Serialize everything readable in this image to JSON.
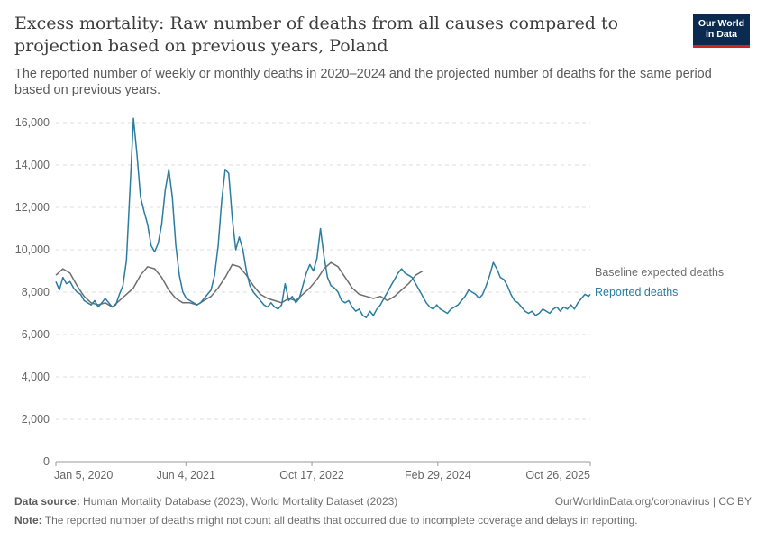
{
  "header": {
    "title": "Excess mortality: Raw number of deaths from all causes compared to projection based on previous years, Poland",
    "subtitle": "The reported number of weekly or monthly deaths in 2020–2024 and the projected number of deaths for the same period based on previous years."
  },
  "logo": {
    "line1": "Our World",
    "line2": "in Data",
    "bg_color": "#0b2a4f",
    "accent_color": "#ce261e"
  },
  "footer": {
    "source_label": "Data source:",
    "source_text": "Human Mortality Database (2023), World Mortality Dataset (2023)",
    "url": "OurWorldinData.org/coronavirus | CC BY",
    "note_label": "Note:",
    "note_text": "The reported number of deaths might not count all deaths that occurred due to incomplete coverage and delays in reporting."
  },
  "chart_data": {
    "type": "line",
    "x_type": "date",
    "xlim": [
      "2020-01-05",
      "2025-10-26"
    ],
    "ylim": [
      0,
      16000
    ],
    "yticks": [
      0,
      2000,
      4000,
      6000,
      8000,
      10000,
      12000,
      14000,
      16000
    ],
    "ytick_labels": [
      "0",
      "2,000",
      "4,000",
      "6,000",
      "8,000",
      "10,000",
      "12,000",
      "14,000",
      "16,000"
    ],
    "xticks": [
      "2020-01-05",
      "2021-06-04",
      "2022-10-17",
      "2024-02-29",
      "2025-10-26"
    ],
    "xtick_labels": [
      "Jan 5, 2020",
      "Jun 4, 2021",
      "Oct 17, 2022",
      "Feb 29, 2024",
      "Oct 26, 2025"
    ],
    "grid": "horizontal dashed",
    "legend": "right, inline labels",
    "series": [
      {
        "name": "Baseline expected deaths",
        "color": "#6e6e6e",
        "points": [
          [
            "2020-01-05",
            8800
          ],
          [
            "2020-02-02",
            9100
          ],
          [
            "2020-03-01",
            8900
          ],
          [
            "2020-03-29",
            8300
          ],
          [
            "2020-04-26",
            7800
          ],
          [
            "2020-05-24",
            7500
          ],
          [
            "2020-06-21",
            7400
          ],
          [
            "2020-07-19",
            7500
          ],
          [
            "2020-08-16",
            7300
          ],
          [
            "2020-09-13",
            7600
          ],
          [
            "2020-10-11",
            7900
          ],
          [
            "2020-11-08",
            8200
          ],
          [
            "2020-12-06",
            8800
          ],
          [
            "2021-01-03",
            9200
          ],
          [
            "2021-01-31",
            9100
          ],
          [
            "2021-02-28",
            8700
          ],
          [
            "2021-03-28",
            8100
          ],
          [
            "2021-04-25",
            7700
          ],
          [
            "2021-05-23",
            7500
          ],
          [
            "2021-06-20",
            7500
          ],
          [
            "2021-07-18",
            7400
          ],
          [
            "2021-08-15",
            7600
          ],
          [
            "2021-09-12",
            7800
          ],
          [
            "2021-10-10",
            8200
          ],
          [
            "2021-11-07",
            8700
          ],
          [
            "2021-12-05",
            9300
          ],
          [
            "2022-01-02",
            9200
          ],
          [
            "2022-01-30",
            8800
          ],
          [
            "2022-02-27",
            8300
          ],
          [
            "2022-03-27",
            7900
          ],
          [
            "2022-04-24",
            7700
          ],
          [
            "2022-05-22",
            7600
          ],
          [
            "2022-06-19",
            7500
          ],
          [
            "2022-07-17",
            7700
          ],
          [
            "2022-08-14",
            7600
          ],
          [
            "2022-09-11",
            7900
          ],
          [
            "2022-10-09",
            8200
          ],
          [
            "2022-11-06",
            8600
          ],
          [
            "2022-12-04",
            9100
          ],
          [
            "2023-01-01",
            9400
          ],
          [
            "2023-01-29",
            9200
          ],
          [
            "2023-02-26",
            8700
          ],
          [
            "2023-03-26",
            8200
          ],
          [
            "2023-04-23",
            7900
          ],
          [
            "2023-05-21",
            7800
          ],
          [
            "2023-06-18",
            7700
          ],
          [
            "2023-07-16",
            7800
          ],
          [
            "2023-08-13",
            7600
          ],
          [
            "2023-09-10",
            7800
          ],
          [
            "2023-10-08",
            8100
          ],
          [
            "2023-11-05",
            8400
          ],
          [
            "2023-12-03",
            8800
          ],
          [
            "2023-12-31",
            9000
          ]
        ]
      },
      {
        "name": "Reported deaths",
        "color": "#2a7ca0",
        "points": [
          [
            "2020-01-05",
            8500
          ],
          [
            "2020-01-19",
            8100
          ],
          [
            "2020-02-02",
            8700
          ],
          [
            "2020-02-16",
            8400
          ],
          [
            "2020-03-01",
            8500
          ],
          [
            "2020-03-15",
            8200
          ],
          [
            "2020-03-29",
            8000
          ],
          [
            "2020-04-12",
            7900
          ],
          [
            "2020-04-26",
            7600
          ],
          [
            "2020-05-10",
            7500
          ],
          [
            "2020-05-24",
            7400
          ],
          [
            "2020-06-07",
            7600
          ],
          [
            "2020-06-21",
            7300
          ],
          [
            "2020-07-05",
            7500
          ],
          [
            "2020-07-19",
            7700
          ],
          [
            "2020-08-02",
            7500
          ],
          [
            "2020-08-16",
            7300
          ],
          [
            "2020-08-30",
            7400
          ],
          [
            "2020-09-13",
            7900
          ],
          [
            "2020-09-27",
            8300
          ],
          [
            "2020-10-11",
            9500
          ],
          [
            "2020-10-25",
            12800
          ],
          [
            "2020-11-08",
            16200
          ],
          [
            "2020-11-22",
            14500
          ],
          [
            "2020-12-06",
            12500
          ],
          [
            "2020-12-20",
            11800
          ],
          [
            "2021-01-03",
            11200
          ],
          [
            "2021-01-17",
            10200
          ],
          [
            "2021-01-31",
            9900
          ],
          [
            "2021-02-14",
            10300
          ],
          [
            "2021-02-28",
            11200
          ],
          [
            "2021-03-14",
            12800
          ],
          [
            "2021-03-28",
            13800
          ],
          [
            "2021-04-11",
            12500
          ],
          [
            "2021-04-25",
            10200
          ],
          [
            "2021-05-09",
            8800
          ],
          [
            "2021-05-23",
            8000
          ],
          [
            "2021-06-06",
            7700
          ],
          [
            "2021-06-20",
            7600
          ],
          [
            "2021-07-04",
            7500
          ],
          [
            "2021-07-18",
            7400
          ],
          [
            "2021-08-01",
            7500
          ],
          [
            "2021-08-15",
            7700
          ],
          [
            "2021-08-29",
            7900
          ],
          [
            "2021-09-12",
            8100
          ],
          [
            "2021-09-26",
            8800
          ],
          [
            "2021-10-10",
            10200
          ],
          [
            "2021-10-24",
            12300
          ],
          [
            "2021-11-07",
            13800
          ],
          [
            "2021-11-21",
            13600
          ],
          [
            "2021-12-05",
            11500
          ],
          [
            "2021-12-19",
            10000
          ],
          [
            "2022-01-02",
            10600
          ],
          [
            "2022-01-16",
            10000
          ],
          [
            "2022-01-30",
            9000
          ],
          [
            "2022-02-13",
            8300
          ],
          [
            "2022-02-27",
            8000
          ],
          [
            "2022-03-13",
            7800
          ],
          [
            "2022-03-27",
            7600
          ],
          [
            "2022-04-10",
            7400
          ],
          [
            "2022-04-24",
            7300
          ],
          [
            "2022-05-08",
            7500
          ],
          [
            "2022-05-22",
            7300
          ],
          [
            "2022-06-05",
            7200
          ],
          [
            "2022-06-19",
            7400
          ],
          [
            "2022-07-03",
            8400
          ],
          [
            "2022-07-17",
            7600
          ],
          [
            "2022-07-31",
            7800
          ],
          [
            "2022-08-14",
            7500
          ],
          [
            "2022-08-28",
            7700
          ],
          [
            "2022-09-11",
            8300
          ],
          [
            "2022-09-25",
            8900
          ],
          [
            "2022-10-09",
            9300
          ],
          [
            "2022-10-23",
            9000
          ],
          [
            "2022-11-06",
            9600
          ],
          [
            "2022-11-20",
            11000
          ],
          [
            "2022-12-04",
            9700
          ],
          [
            "2022-12-18",
            8700
          ],
          [
            "2023-01-01",
            8300
          ],
          [
            "2023-01-15",
            8200
          ],
          [
            "2023-01-29",
            8000
          ],
          [
            "2023-02-12",
            7600
          ],
          [
            "2023-02-26",
            7500
          ],
          [
            "2023-03-12",
            7600
          ],
          [
            "2023-03-26",
            7300
          ],
          [
            "2023-04-09",
            7100
          ],
          [
            "2023-04-23",
            7200
          ],
          [
            "2023-05-07",
            6900
          ],
          [
            "2023-05-21",
            6800
          ],
          [
            "2023-06-04",
            7100
          ],
          [
            "2023-06-18",
            6900
          ],
          [
            "2023-07-02",
            7200
          ],
          [
            "2023-07-16",
            7400
          ],
          [
            "2023-07-30",
            7700
          ],
          [
            "2023-08-13",
            8000
          ],
          [
            "2023-08-27",
            8300
          ],
          [
            "2023-09-10",
            8600
          ],
          [
            "2023-09-24",
            8900
          ],
          [
            "2023-10-08",
            9100
          ],
          [
            "2023-10-22",
            8900
          ],
          [
            "2023-11-05",
            8800
          ],
          [
            "2023-11-19",
            8700
          ],
          [
            "2023-12-03",
            8400
          ],
          [
            "2023-12-17",
            8100
          ],
          [
            "2023-12-31",
            7800
          ],
          [
            "2024-01-14",
            7500
          ],
          [
            "2024-01-28",
            7300
          ],
          [
            "2024-02-11",
            7200
          ],
          [
            "2024-02-25",
            7400
          ],
          [
            "2024-03-10",
            7200
          ],
          [
            "2024-03-24",
            7100
          ],
          [
            "2024-04-07",
            7000
          ],
          [
            "2024-04-21",
            7200
          ],
          [
            "2024-05-05",
            7300
          ],
          [
            "2024-05-19",
            7400
          ],
          [
            "2024-06-02",
            7600
          ],
          [
            "2024-06-16",
            7800
          ],
          [
            "2024-06-30",
            8100
          ],
          [
            "2024-07-14",
            8000
          ],
          [
            "2024-07-28",
            7900
          ],
          [
            "2024-08-11",
            7700
          ],
          [
            "2024-08-25",
            7900
          ],
          [
            "2024-09-08",
            8300
          ],
          [
            "2024-09-22",
            8800
          ],
          [
            "2024-10-06",
            9400
          ],
          [
            "2024-10-20",
            9100
          ],
          [
            "2024-11-03",
            8700
          ],
          [
            "2024-11-17",
            8600
          ],
          [
            "2024-12-01",
            8300
          ],
          [
            "2024-12-15",
            7900
          ],
          [
            "2024-12-29",
            7600
          ],
          [
            "2025-01-12",
            7500
          ],
          [
            "2025-01-26",
            7300
          ],
          [
            "2025-02-09",
            7100
          ],
          [
            "2025-02-23",
            7000
          ],
          [
            "2025-03-09",
            7100
          ],
          [
            "2025-03-23",
            6900
          ],
          [
            "2025-04-06",
            7000
          ],
          [
            "2025-04-20",
            7200
          ],
          [
            "2025-05-04",
            7100
          ],
          [
            "2025-05-18",
            7000
          ],
          [
            "2025-06-01",
            7200
          ],
          [
            "2025-06-15",
            7300
          ],
          [
            "2025-06-29",
            7100
          ],
          [
            "2025-07-13",
            7300
          ],
          [
            "2025-07-27",
            7200
          ],
          [
            "2025-08-10",
            7400
          ],
          [
            "2025-08-24",
            7200
          ],
          [
            "2025-09-07",
            7500
          ],
          [
            "2025-09-21",
            7700
          ],
          [
            "2025-10-05",
            7900
          ],
          [
            "2025-10-19",
            7800
          ],
          [
            "2025-10-26",
            7900
          ]
        ]
      }
    ]
  }
}
